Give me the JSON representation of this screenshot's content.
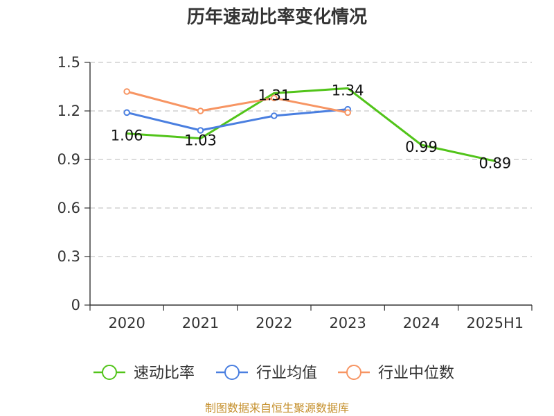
{
  "chart_data": {
    "type": "line",
    "title": "历年速动比率变化情况",
    "categories": [
      "2020",
      "2021",
      "2022",
      "2023",
      "2024",
      "2025H1"
    ],
    "ylim": [
      0,
      1.5
    ],
    "yticks": [
      {
        "value": 0,
        "label": "0"
      },
      {
        "value": 0.3,
        "label": "0.3"
      },
      {
        "value": 0.6,
        "label": "0.6"
      },
      {
        "value": 0.9,
        "label": "0.9"
      },
      {
        "value": 1.2,
        "label": "1.2"
      },
      {
        "value": 1.5,
        "label": "1.5"
      }
    ],
    "grid": true,
    "legend_position": "bottom",
    "series": [
      {
        "name": "速动比率",
        "color": "#52c41a",
        "values": [
          1.06,
          1.03,
          1.31,
          1.34,
          0.99,
          0.89
        ],
        "labels": [
          "1.06",
          "1.03",
          "1.31",
          "1.34",
          "0.99",
          "0.89"
        ],
        "show_points": false
      },
      {
        "name": "行业均值",
        "color": "#4a7fe0",
        "values": [
          1.19,
          1.08,
          1.17,
          1.21,
          null,
          null
        ],
        "show_points": true
      },
      {
        "name": "行业中位数",
        "color": "#f79563",
        "values": [
          1.32,
          1.2,
          1.28,
          1.19,
          null,
          null
        ],
        "show_points": true
      }
    ],
    "source": "制图数据来自恒生聚源数据库"
  }
}
